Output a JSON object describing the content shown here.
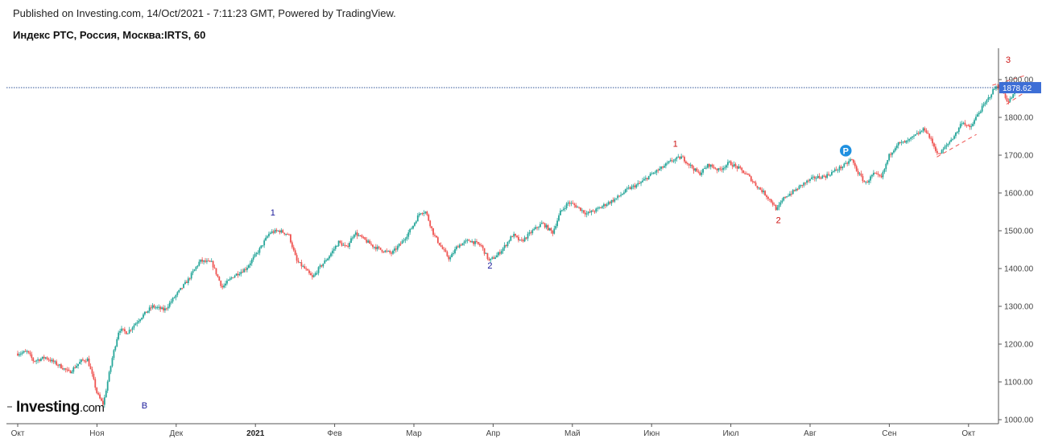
{
  "header": {
    "published": "Published on Investing.com, 14/Oct/2021 - 7:11:23 GMT, Powered by TradingView.",
    "symbol": "Индекс РТС, Россия, Москва:IRTS, 60"
  },
  "logo": {
    "main": "Investing",
    "suffix": ".com"
  },
  "colors": {
    "up": "#26a69a",
    "down": "#ef5350",
    "price_line": "#2f5597",
    "price_tag": "#3d6ed6",
    "wave_blue": "#1a1a9a",
    "wave_red": "#cc1111",
    "pivot": "#1e90e0",
    "axis": "#888888"
  },
  "chart_data": {
    "type": "candlestick",
    "timeframe": "60",
    "x_labels": [
      "Окт",
      "Ноя",
      "Дек",
      "2021",
      "Фев",
      "Мар",
      "Апр",
      "Май",
      "Июн",
      "Июл",
      "Авг",
      "Сен",
      "Окт"
    ],
    "x_label_months": [
      0,
      1,
      2,
      3,
      4,
      5,
      6,
      7,
      8,
      9,
      10,
      11,
      12
    ],
    "y_ticks": [
      "1000.00",
      "1100.00",
      "1200.00",
      "1300.00",
      "1400.00",
      "1500.00",
      "1600.00",
      "1700.00",
      "1800.00",
      "1900.00"
    ],
    "y_tick_values": [
      1000,
      1100,
      1200,
      1300,
      1400,
      1500,
      1600,
      1700,
      1800,
      1900
    ],
    "ylim": [
      1000,
      1910
    ],
    "x_range_months": [
      0,
      12.7
    ],
    "last_price": "1878.62",
    "last_price_value": 1878.62,
    "path": [
      [
        0.0,
        1175
      ],
      [
        0.12,
        1180
      ],
      [
        0.2,
        1155
      ],
      [
        0.35,
        1165
      ],
      [
        0.55,
        1140
      ],
      [
        0.65,
        1125
      ],
      [
        0.8,
        1155
      ],
      [
        0.88,
        1160
      ],
      [
        0.95,
        1110
      ],
      [
        1.0,
        1070
      ],
      [
        1.05,
        1050
      ],
      [
        1.08,
        1040
      ],
      [
        1.12,
        1085
      ],
      [
        1.2,
        1170
      ],
      [
        1.28,
        1240
      ],
      [
        1.38,
        1230
      ],
      [
        1.55,
        1270
      ],
      [
        1.7,
        1300
      ],
      [
        1.85,
        1290
      ],
      [
        2.0,
        1330
      ],
      [
        2.15,
        1370
      ],
      [
        2.3,
        1420
      ],
      [
        2.45,
        1415
      ],
      [
        2.58,
        1350
      ],
      [
        2.72,
        1380
      ],
      [
        2.88,
        1400
      ],
      [
        3.05,
        1450
      ],
      [
        3.18,
        1495
      ],
      [
        3.3,
        1500
      ],
      [
        3.42,
        1490
      ],
      [
        3.52,
        1420
      ],
      [
        3.62,
        1400
      ],
      [
        3.72,
        1375
      ],
      [
        3.8,
        1400
      ],
      [
        3.92,
        1430
      ],
      [
        4.05,
        1470
      ],
      [
        4.15,
        1455
      ],
      [
        4.25,
        1495
      ],
      [
        4.35,
        1480
      ],
      [
        4.48,
        1460
      ],
      [
        4.58,
        1450
      ],
      [
        4.72,
        1440
      ],
      [
        4.85,
        1470
      ],
      [
        4.98,
        1510
      ],
      [
        5.08,
        1550
      ],
      [
        5.15,
        1550
      ],
      [
        5.25,
        1490
      ],
      [
        5.35,
        1455
      ],
      [
        5.45,
        1425
      ],
      [
        5.55,
        1460
      ],
      [
        5.7,
        1475
      ],
      [
        5.85,
        1460
      ],
      [
        5.95,
        1420
      ],
      [
        6.05,
        1435
      ],
      [
        6.15,
        1460
      ],
      [
        6.25,
        1490
      ],
      [
        6.35,
        1470
      ],
      [
        6.5,
        1500
      ],
      [
        6.62,
        1520
      ],
      [
        6.75,
        1495
      ],
      [
        6.85,
        1550
      ],
      [
        6.95,
        1575
      ],
      [
        7.05,
        1565
      ],
      [
        7.18,
        1545
      ],
      [
        7.3,
        1555
      ],
      [
        7.42,
        1570
      ],
      [
        7.55,
        1585
      ],
      [
        7.7,
        1610
      ],
      [
        7.85,
        1625
      ],
      [
        8.0,
        1650
      ],
      [
        8.12,
        1665
      ],
      [
        8.25,
        1685
      ],
      [
        8.38,
        1695
      ],
      [
        8.5,
        1670
      ],
      [
        8.6,
        1650
      ],
      [
        8.72,
        1675
      ],
      [
        8.85,
        1660
      ],
      [
        8.98,
        1680
      ],
      [
        9.1,
        1665
      ],
      [
        9.22,
        1645
      ],
      [
        9.32,
        1620
      ],
      [
        9.42,
        1600
      ],
      [
        9.52,
        1575
      ],
      [
        9.58,
        1555
      ],
      [
        9.68,
        1590
      ],
      [
        9.8,
        1605
      ],
      [
        9.92,
        1625
      ],
      [
        10.05,
        1640
      ],
      [
        10.2,
        1645
      ],
      [
        10.32,
        1660
      ],
      [
        10.45,
        1675
      ],
      [
        10.52,
        1690
      ],
      [
        10.6,
        1655
      ],
      [
        10.7,
        1625
      ],
      [
        10.8,
        1650
      ],
      [
        10.9,
        1640
      ],
      [
        11.0,
        1700
      ],
      [
        11.1,
        1730
      ],
      [
        11.22,
        1735
      ],
      [
        11.35,
        1755
      ],
      [
        11.45,
        1770
      ],
      [
        11.55,
        1730
      ],
      [
        11.62,
        1700
      ],
      [
        11.72,
        1725
      ],
      [
        11.85,
        1760
      ],
      [
        11.92,
        1790
      ],
      [
        12.02,
        1770
      ],
      [
        12.12,
        1810
      ],
      [
        12.22,
        1840
      ],
      [
        12.32,
        1875
      ],
      [
        12.38,
        1885
      ],
      [
        12.44,
        1865
      ],
      [
        12.5,
        1840
      ],
      [
        12.55,
        1855
      ],
      [
        12.6,
        1870
      ],
      [
        12.7,
        1878.62
      ]
    ],
    "wave_labels": [
      {
        "text": "B",
        "x": 1.6,
        "y": 1030,
        "color": "blue"
      },
      {
        "text": "1",
        "x": 3.22,
        "y": 1540,
        "color": "blue"
      },
      {
        "text": "2",
        "x": 5.96,
        "y": 1400,
        "color": "blue"
      },
      {
        "text": "1",
        "x": 8.3,
        "y": 1722,
        "color": "red"
      },
      {
        "text": "2",
        "x": 9.6,
        "y": 1520,
        "color": "red"
      },
      {
        "text": "3",
        "x": 12.5,
        "y": 1945,
        "color": "red"
      }
    ],
    "pivot_marker": {
      "text": "P",
      "x": 10.45,
      "y": 1712
    },
    "trend_lines": [
      {
        "from": [
          11.6,
          1695
        ],
        "to": [
          12.1,
          1755
        ]
      },
      {
        "from": [
          12.3,
          1885
        ],
        "to": [
          12.7,
          1910
        ]
      },
      {
        "from": [
          12.48,
          1835
        ],
        "to": [
          12.7,
          1865
        ]
      }
    ]
  }
}
